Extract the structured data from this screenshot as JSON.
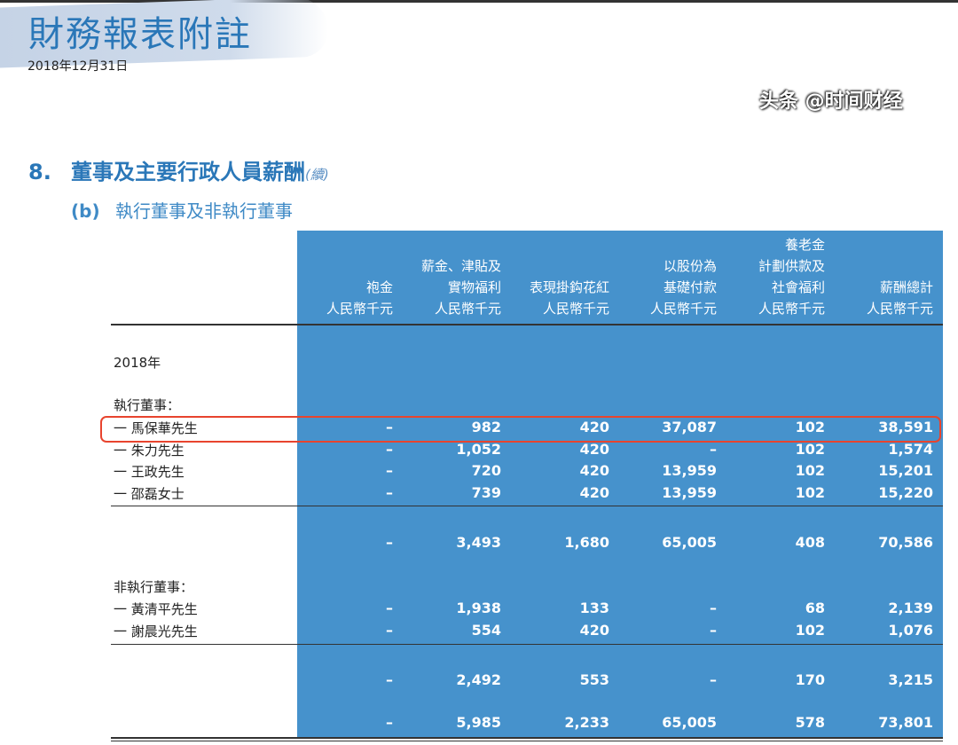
{
  "header": {
    "title": "財務報表附註",
    "date": "2018年12月31日"
  },
  "section": {
    "number": "8.",
    "title": "董事及主要行政人員薪酬",
    "continued": "(續)"
  },
  "subsection": {
    "label": "(b)",
    "title": "執行董事及非執行董事"
  },
  "table": {
    "columns": [
      [
        "袍金",
        "人民幣千元"
      ],
      [
        "薪金、津貼及",
        "實物福利",
        "人民幣千元"
      ],
      [
        "表現掛鈎花紅",
        "人民幣千元"
      ],
      [
        "以股份為",
        "基礎付款",
        "人民幣千元"
      ],
      [
        "養老金",
        "計劃供款及",
        "社會福利",
        "人民幣千元"
      ],
      [
        "薪酬總計",
        "人民幣千元"
      ]
    ],
    "year": "2018年",
    "executive_label": "執行董事：",
    "executive": [
      {
        "name": "一 馬保華先生",
        "values": [
          "–",
          "982",
          "420",
          "37,087",
          "102",
          "38,591"
        ],
        "highlighted": true
      },
      {
        "name": "一 朱力先生",
        "values": [
          "–",
          "1,052",
          "420",
          "–",
          "102",
          "1,574"
        ]
      },
      {
        "name": "一 王政先生",
        "values": [
          "–",
          "720",
          "420",
          "13,959",
          "102",
          "15,201"
        ]
      },
      {
        "name": "一 邵磊女士",
        "values": [
          "–",
          "739",
          "420",
          "13,959",
          "102",
          "15,220"
        ]
      }
    ],
    "executive_subtotal": [
      "–",
      "3,493",
      "1,680",
      "65,005",
      "408",
      "70,586"
    ],
    "non_executive_label": "非執行董事：",
    "non_executive": [
      {
        "name": "一 黃清平先生",
        "values": [
          "–",
          "1,938",
          "133",
          "–",
          "68",
          "2,139"
        ]
      },
      {
        "name": "一 謝晨光先生",
        "values": [
          "–",
          "554",
          "420",
          "–",
          "102",
          "1,076"
        ]
      }
    ],
    "non_executive_subtotal": [
      "–",
      "2,492",
      "553",
      "–",
      "170",
      "3,215"
    ],
    "total": [
      "–",
      "5,985",
      "2,233",
      "65,005",
      "578",
      "73,801"
    ]
  },
  "watermark": "头条 @时间财经",
  "colors": {
    "accent": "#2a77b8",
    "table_bg": "#4692cc",
    "highlight": "#e8442e"
  }
}
